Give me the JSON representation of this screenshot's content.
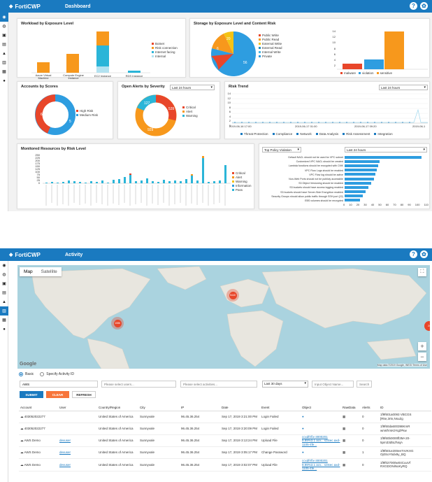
{
  "app": {
    "brand": "FortiCWP"
  },
  "dashboard": {
    "title": "Dashboard",
    "sidebar_icons": [
      "dashboard-icon",
      "globe-icon",
      "camera-icon",
      "box-icon",
      "warning-icon",
      "chart-icon",
      "calendar-icon",
      "user-icon"
    ],
    "workload": {
      "title": "Workload by Exposure Level",
      "categories": [
        "Azure Virtual Machine",
        "Compute Engine Instance",
        "EC2 Instance",
        "RDS Instance"
      ],
      "legend": [
        "Botnet",
        "Risk connection",
        "Internet facing",
        "Internal"
      ],
      "colors": [
        "#e8462a",
        "#f7981c",
        "#2bb5d8",
        "#b3e2f0"
      ]
    },
    "storage": {
      "title": "Storage by Exposure Level and Content Risk",
      "pie_labels": [
        "6",
        "20",
        "56"
      ],
      "legend": [
        "Public Write",
        "Public Read",
        "External Write",
        "External Read",
        "Internal Write",
        "Private"
      ],
      "colors": [
        "#e8462a",
        "#f7981c",
        "#f4c314",
        "#1f8fc2",
        "#48b7e3",
        "#2e9de0"
      ],
      "bar_yticks": [
        "14",
        "12",
        "10",
        "8",
        "6",
        "4",
        "2",
        "0"
      ],
      "bar_legend": [
        "malware",
        "violation",
        "sensitive"
      ]
    },
    "accounts": {
      "title": "Accounts by Scores",
      "legend": [
        "High Risk",
        "Medium Risk"
      ],
      "labels": [
        "6",
        "5"
      ]
    },
    "alerts": {
      "title": "Open Alerts by Severity",
      "range": "Last 24 hours",
      "legend": [
        "Critical",
        "Alert",
        "Warning"
      ],
      "labels": [
        "127",
        "539",
        "929"
      ]
    },
    "risk": {
      "title": "Risk Trend",
      "range": "Last 24 hours",
      "xticks": [
        "2019-06-16 17:00",
        "2019-06-17 01:00",
        "2019-06-17 09:20",
        "2019-06-1"
      ],
      "yticks": [
        "14",
        "12",
        "10",
        "8",
        "6",
        "4",
        "2",
        "0"
      ],
      "legend": [
        "Threat Protection",
        "Compliance",
        "Network",
        "Data Analysis",
        "Risk Assessment",
        "Integration"
      ]
    },
    "monitored": {
      "title": "Monitored Resources by Risk Level",
      "yticks": [
        "250",
        "225",
        "200",
        "175",
        "150",
        "125",
        "100",
        "75",
        "50",
        "25",
        "0"
      ],
      "legend": [
        "Critical",
        "Alert",
        "Warning",
        "Information",
        "Pass"
      ]
    },
    "policy": {
      "select": "Top Policy Violation",
      "range": "Last 24 hours",
      "items": [
        "Default NACL should not be used for VPC subnet",
        "Customized VPC NACL should be created",
        "Lambda functions should be encrypted with CMK",
        "VPC Flow Logs should be enabled",
        "VPC Flow log should be active",
        "Non-Web Ports should not be publicly accessible",
        "S3 Object Versioning should be enabled",
        "S3 buckets should have access logging enabled",
        "S3 buckets should have Server-Side Encryption enabled",
        "Security Groups should allow public traffic through SSH port (22)",
        "EBS volumes should be encrypted"
      ],
      "xticks": [
        "0",
        "10",
        "20",
        "30",
        "40",
        "50",
        "60",
        "70",
        "80",
        "90",
        "100",
        "110"
      ]
    }
  },
  "activity": {
    "title": "Activity",
    "map": {
      "tab_map": "Map",
      "tab_sat": "Satellite",
      "clusters": [
        "5440",
        "1086",
        "24"
      ],
      "google": "Google",
      "attribution": "Map data ©2019 Google, INEGI  Terms of Use"
    },
    "radio_basic": "Basic",
    "radio_specify": "Specify Activity ID",
    "fields": {
      "account_value": "AWS",
      "users_ph": "Please select users...",
      "activities_ph": "Please select activities...",
      "range": "Last 30 days",
      "object_ph": "Input Object Name...",
      "extra_ph": "Search"
    },
    "buttons": {
      "submit": "SUBMIT",
      "clear": "CLEAR",
      "refresh": "REFRESH"
    },
    "columns": [
      "Account",
      "User",
      "Country/Region",
      "City",
      "IP",
      "Date",
      "Event",
      "Object",
      "RawData",
      "Alerts",
      "ID"
    ],
    "rows": [
      {
        "account": "403052022277",
        "user": "",
        "country": "United States of America",
        "city": "Sunnyvale",
        "ip": "96.45.36.254",
        "date": "Sep 17, 2019 3:21:00 PM",
        "event": "Login Failed",
        "object": "",
        "alerts": "0",
        "id": "1f9f601a0093 VBCGS [Rke,3rtn,NsuZg"
      },
      {
        "account": "403052022277",
        "user": "",
        "country": "United States of America",
        "city": "Sunnyvale",
        "ip": "96.45.36.254",
        "date": "Sep 17, 2019 3:20:09 PM",
        "event": "Login Failed",
        "object": "",
        "alerts": "0",
        "id": "1f9f60da600398KmR wm6fVsK0YqZPkw"
      },
      {
        "account": "AWS Demo",
        "user": "devuser",
        "country": "United States of America",
        "city": "Sunnyvale",
        "ip": "96.45.36.254",
        "date": "Sep 17, 2019 3:13:24 PM",
        "event": "Upload File",
        "object": "ccxdfr/fix-3000201 9.99%3.1 acv... s3Sec axd-1105-4fe...",
        "alerts": "0",
        "id": "1f9f60b0000fl3M+20- 5pm33d5LfNxjA"
      },
      {
        "account": "AWS Demo",
        "user": "devuser",
        "country": "United States of America",
        "city": "Sunnyvale",
        "ip": "96.45.36.254",
        "date": "Sep 17, 2019 3:05:17 PM",
        "event": "Change Password",
        "object": "",
        "alerts": "1",
        "id": "1f9f601e200ee7nVKXG Oj0SoY5dx9y_BQ"
      },
      {
        "account": "AWS Demo",
        "user": "devuser",
        "country": "United States of America",
        "city": "Sunnyvale",
        "ip": "96.45.36.254",
        "date": "Sep 17, 2019 3:02:07 PM",
        "event": "Upload File",
        "object": "ccxdfr/fix-3000201 9.99%3.1 acv... s3Sec axd-1105-4fe...",
        "alerts": "0",
        "id": "1f9f027000w04CuuVf RXGDONiNoKyRQ"
      }
    ]
  }
}
